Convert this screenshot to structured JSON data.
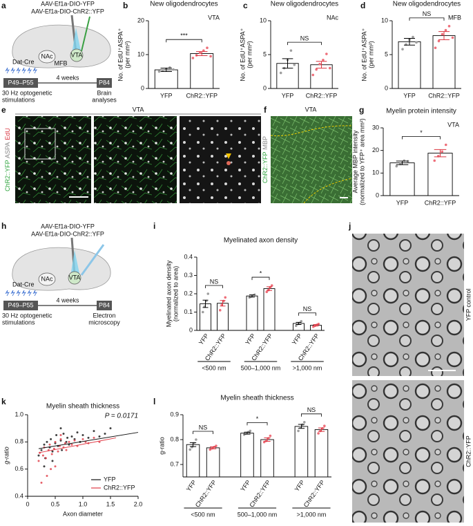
{
  "panel_labels": [
    "a",
    "b",
    "c",
    "d",
    "e",
    "f",
    "g",
    "h",
    "i",
    "j",
    "k",
    "l"
  ],
  "diagrams": [
    {
      "virus": [
        "AAV-Ef1a-DIO-YFP",
        "AAV-Ef1a-DIO-ChR2::YFP"
      ],
      "mouse": "Dat-Cre",
      "regions": [
        "NAc",
        "MFB",
        "VTA"
      ],
      "timeline": [
        "P49–P55",
        "4 weeks",
        "P84"
      ],
      "left_caption": [
        "30 Hz optogenetic",
        "stimulations"
      ],
      "right_caption": [
        "Brain",
        "analyses"
      ]
    },
    {
      "virus": [
        "AAV-Ef1a-DIO-YFP",
        "AAV-Ef1a-DIO-ChR2::YFP"
      ],
      "mouse": "Dat-Cre",
      "regions": [
        "NAc",
        "VTA"
      ],
      "timeline": [
        "P49–P55",
        "4 weeks",
        "P84"
      ],
      "left_caption": [
        "30 Hz optogenetic",
        "stimulations"
      ],
      "right_caption": [
        "Electron",
        "microscopy"
      ]
    }
  ],
  "images": {
    "e": {
      "title": "VTA",
      "stain": [
        "ChR2::YFP",
        "ASPA",
        "EdU"
      ]
    },
    "f": {
      "title": "VTA",
      "stain": [
        "ChR2::YFP",
        "MBP"
      ]
    },
    "j": {
      "labels": [
        "YFP control",
        "ChR2::YFP"
      ]
    }
  },
  "chart_data": [
    {
      "type": "bar",
      "title": "New oligodendrocytes",
      "annotation": "VTA",
      "ylabel": [
        "No. of EdU⁺ASPA⁺",
        "(per mm²)"
      ],
      "categories": [
        "YFP",
        "ChR2::YFP"
      ],
      "values": [
        5.5,
        10.3
      ],
      "errors": [
        0.5,
        0.6
      ],
      "points": [
        [
          5.0,
          5.4,
          5.8,
          6.2,
          5.6
        ],
        [
          9.0,
          9.8,
          10.5,
          11.2,
          12.0,
          9.5
        ]
      ],
      "significance": [
        "***"
      ],
      "ylim": [
        0,
        20
      ],
      "yticks": [
        0,
        10,
        20
      ],
      "bar_color": "#ffffff",
      "point_colors": [
        "#9e9e9e",
        "#ee6f7a"
      ],
      "error_colors": [
        "#000000",
        "#d9343f"
      ],
      "rotated_labels": false
    },
    {
      "type": "bar",
      "title": "New oligodendrocytes",
      "annotation": "NAc",
      "ylabel": [
        "No. of EdU⁺ASPA⁺",
        "(per mm²)"
      ],
      "categories": [
        "YFP",
        "ChR2::YFP"
      ],
      "values": [
        3.7,
        3.5
      ],
      "errors": [
        0.7,
        0.5
      ],
      "points": [
        [
          2.3,
          3.0,
          4.2,
          5.6,
          3.5
        ],
        [
          2.0,
          2.8,
          3.6,
          4.2,
          5.1,
          3.0
        ]
      ],
      "significance": [
        "NS"
      ],
      "ylim": [
        0,
        10
      ],
      "yticks": [
        0,
        5,
        10
      ],
      "bar_color": "#ffffff",
      "point_colors": [
        "#9e9e9e",
        "#ee6f7a"
      ],
      "error_colors": [
        "#000000",
        "#d9343f"
      ],
      "rotated_labels": false
    },
    {
      "type": "bar",
      "title": "New oligodendrocytes",
      "annotation": "MFB",
      "ylabel": [
        "No. of EdU⁺ASPA⁺",
        "(per mm²)"
      ],
      "categories": [
        "YFP",
        "ChR2::YFP"
      ],
      "values": [
        6.9,
        7.8
      ],
      "errors": [
        0.5,
        0.6
      ],
      "points": [
        [
          5.8,
          6.5,
          7.2,
          7.6,
          6.8
        ],
        [
          6.0,
          7.0,
          8.0,
          8.6,
          9.2,
          7.5
        ]
      ],
      "significance": [
        "NS"
      ],
      "ylim": [
        0,
        10
      ],
      "yticks": [
        0,
        5,
        10
      ],
      "bar_color": "#ffffff",
      "point_colors": [
        "#9e9e9e",
        "#ee6f7a"
      ],
      "error_colors": [
        "#000000",
        "#d9343f"
      ],
      "rotated_labels": false
    },
    {
      "type": "bar",
      "title": "Myelin protein intensity",
      "annotation": "VTA",
      "ylabel": [
        "Average MBP intensity",
        "(normalized to YFP⁺ area mm²)"
      ],
      "categories": [
        "YFP",
        "ChR2::YFP"
      ],
      "values": [
        14.5,
        18.8
      ],
      "errors": [
        0.8,
        1.6
      ],
      "points": [
        [
          13,
          14,
          15.5,
          15.2
        ],
        [
          15.5,
          17.5,
          19.5,
          22.5
        ]
      ],
      "significance": [
        "*"
      ],
      "ylim": [
        0,
        30
      ],
      "yticks": [
        0,
        10,
        20,
        30
      ],
      "bar_color": "#ffffff",
      "point_colors": [
        "#9e9e9e",
        "#ee6f7a"
      ],
      "error_colors": [
        "#000000",
        "#d9343f"
      ],
      "rotated_labels": false
    },
    {
      "type": "bar",
      "title": "Myelinated axon density",
      "ylabel": [
        "Myelinated axon density",
        "(normalized to area)"
      ],
      "categories": [
        "YFP",
        "ChR2::YFP",
        "YFP",
        "ChR2::YFP",
        "YFP",
        "ChR2::YFP"
      ],
      "groups": [
        "<500 nm",
        "500–1,000 nm",
        ">1,000 nm"
      ],
      "values": [
        0.145,
        0.148,
        0.188,
        0.228,
        0.038,
        0.028
      ],
      "errors": [
        0.02,
        0.015,
        0.006,
        0.01,
        0.006,
        0.004
      ],
      "points": [
        [
          0.1,
          0.13,
          0.16,
          0.2
        ],
        [
          0.11,
          0.14,
          0.16,
          0.18
        ],
        [
          0.18,
          0.185,
          0.19,
          0.195
        ],
        [
          0.21,
          0.22,
          0.235,
          0.245
        ],
        [
          0.025,
          0.035,
          0.04,
          0.05
        ],
        [
          0.02,
          0.025,
          0.03,
          0.035
        ]
      ],
      "significance": [
        "NS",
        "*",
        "NS"
      ],
      "ylim": [
        0,
        0.4
      ],
      "yticks": [
        0,
        0.1,
        0.2,
        0.3,
        0.4
      ],
      "bar_color": "#ffffff",
      "point_colors": [
        "#9e9e9e",
        "#ee6f7a"
      ],
      "error_colors": [
        "#000000",
        "#d9343f"
      ],
      "rotated_labels": true
    },
    {
      "type": "scatter",
      "title": "Myelin sheath thickness",
      "annotation": "P = 0.0171",
      "xlabel": "Axon diameter",
      "ylabel": "g-ratio",
      "xlim": [
        0,
        2
      ],
      "xticks": [
        0,
        0.5,
        {
          "value": 1,
          "label": "1.0"
        },
        1.5,
        {
          "value": 2,
          "label": "2.0"
        }
      ],
      "ylim": [
        0.4,
        1.0
      ],
      "yticks": [
        0.4,
        0.6,
        0.8,
        {
          "value": 1,
          "label": "1.0"
        }
      ],
      "legend": "lower right",
      "series": [
        {
          "name": "YFP",
          "color": "#111111",
          "x": [
            0.2,
            0.25,
            0.3,
            0.32,
            0.35,
            0.4,
            0.42,
            0.45,
            0.5,
            0.52,
            0.55,
            0.6,
            0.62,
            0.65,
            0.7,
            0.72,
            0.75,
            0.8,
            0.85,
            0.9,
            0.95,
            1.0,
            1.1,
            1.2,
            1.3,
            1.4,
            1.5,
            0.3,
            0.45,
            0.6
          ],
          "values": [
            0.7,
            0.74,
            0.78,
            0.68,
            0.8,
            0.76,
            0.82,
            0.73,
            0.79,
            0.85,
            0.77,
            0.81,
            0.74,
            0.86,
            0.8,
            0.83,
            0.78,
            0.84,
            0.82,
            0.87,
            0.8,
            0.85,
            0.83,
            0.88,
            0.84,
            0.86,
            0.9,
            0.62,
            0.66,
            0.9
          ],
          "fit_x": [
            0.2,
            2.0
          ],
          "fit_y": [
            0.75,
            0.87
          ]
        },
        {
          "name": "ChR2::YFP",
          "color": "#e03a45",
          "x": [
            0.2,
            0.22,
            0.28,
            0.3,
            0.33,
            0.38,
            0.4,
            0.44,
            0.48,
            0.5,
            0.55,
            0.58,
            0.6,
            0.65,
            0.68,
            0.7,
            0.75,
            0.8,
            0.85,
            0.9,
            1.0,
            1.05,
            1.1,
            1.2,
            1.3,
            0.35,
            0.42,
            0.5,
            0.25,
            0.6
          ],
          "values": [
            0.66,
            0.72,
            0.7,
            0.76,
            0.68,
            0.74,
            0.78,
            0.71,
            0.75,
            0.8,
            0.73,
            0.77,
            0.82,
            0.76,
            0.79,
            0.74,
            0.8,
            0.78,
            0.81,
            0.77,
            0.82,
            0.8,
            0.79,
            0.83,
            0.8,
            0.55,
            0.6,
            0.62,
            0.5,
            0.85
          ],
          "fit_x": [
            0.2,
            1.6
          ],
          "fit_y": [
            0.72,
            0.83
          ]
        }
      ]
    },
    {
      "type": "bar",
      "title": "Myelin sheath thickness",
      "ylabel": [
        "g-ratio"
      ],
      "categories": [
        "YFP",
        "ChR2::YFP",
        "YFP",
        "ChR2::YFP",
        "YFP",
        "ChR2::YFP"
      ],
      "groups": [
        "<500 nm",
        "500–1,000 nm",
        ">1,000 nm"
      ],
      "values": [
        0.78,
        0.767,
        0.826,
        0.8,
        0.853,
        0.84
      ],
      "errors": [
        0.008,
        0.004,
        0.004,
        0.007,
        0.008,
        0.007
      ],
      "points": [
        [
          0.76,
          0.77,
          0.785,
          0.8
        ],
        [
          0.76,
          0.765,
          0.77,
          0.775
        ],
        [
          0.82,
          0.825,
          0.83,
          0.835
        ],
        [
          0.79,
          0.795,
          0.805,
          0.815
        ],
        [
          0.835,
          0.85,
          0.86,
          0.87
        ],
        [
          0.825,
          0.835,
          0.845,
          0.855
        ]
      ],
      "significance": [
        "NS",
        "*",
        "NS"
      ],
      "ylim": [
        0.65,
        0.9
      ],
      "yticks": [
        0.7,
        0.8,
        0.9
      ],
      "bar_color": "#ffffff",
      "point_colors": [
        "#9e9e9e",
        "#ee6f7a"
      ],
      "error_colors": [
        "#000000",
        "#d9343f"
      ],
      "rotated_labels": true
    }
  ]
}
